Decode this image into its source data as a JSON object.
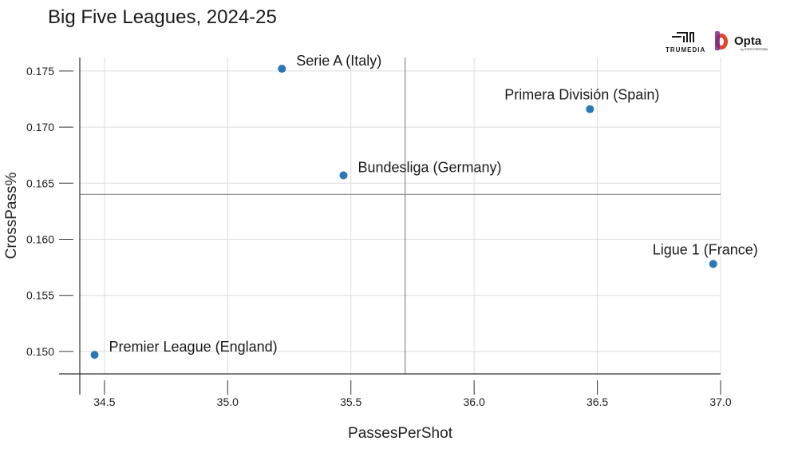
{
  "chart_data": {
    "type": "scatter",
    "title": "Big Five Leagues, 2024-25",
    "xlabel": "PassesPerShot",
    "ylabel": "CrossPass%",
    "xlim": [
      34.4,
      37.0
    ],
    "ylim": [
      0.148,
      0.1762
    ],
    "x_ticks": [
      34.5,
      35.0,
      35.5,
      36.0,
      36.5,
      37.0
    ],
    "y_ticks": [
      0.15,
      0.155,
      0.16,
      0.165,
      0.17,
      0.175
    ],
    "grid": true,
    "reference_lines": {
      "x": 35.72,
      "y": 0.164
    },
    "point_color": "#2a78b4",
    "points": [
      {
        "label": "Serie A (Italy)",
        "x": 35.22,
        "y": 0.1752
      },
      {
        "label": "Primera División (Spain)",
        "x": 36.47,
        "y": 0.1716
      },
      {
        "label": "Bundesliga (Germany)",
        "x": 35.47,
        "y": 0.1657
      },
      {
        "label": "Ligue 1 (France)",
        "x": 36.97,
        "y": 0.1578
      },
      {
        "label": "Premier League (England)",
        "x": 34.46,
        "y": 0.1497
      }
    ]
  },
  "logos": {
    "trumedia_text": "TRUMEDIA",
    "opta_text": "Opta",
    "opta_sub": "by STATS PERFORM",
    "opta_color": "#e0462c"
  }
}
